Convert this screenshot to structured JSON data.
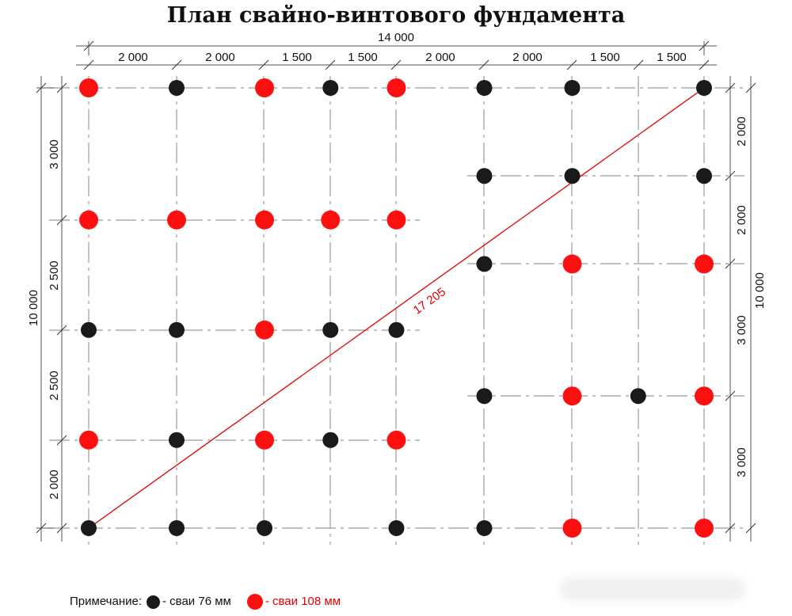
{
  "title": "План свайно-винтового фундамента",
  "dimensions": {
    "total_width": "14 000",
    "top_segments": [
      "2 000",
      "2 000",
      "1 500",
      "1 500",
      "2 000",
      "2 000",
      "1 500",
      "1 500"
    ],
    "total_height_left": "10 000",
    "left_segments": [
      "3 000",
      "2 500",
      "2 500",
      "2 000"
    ],
    "total_height_right": "10 000",
    "right_segments": [
      "2 000",
      "2 000",
      "3 000",
      "3 000"
    ],
    "diagonal": "17 205"
  },
  "colors": {
    "pile_76": "#1a1a1a",
    "pile_108": "#ff1010",
    "diagonal": "#e10000"
  },
  "piles": [
    {
      "x": 0,
      "y": 0,
      "type": "108"
    },
    {
      "x": 2000,
      "y": 0,
      "type": "76"
    },
    {
      "x": 4000,
      "y": 0,
      "type": "108"
    },
    {
      "x": 5500,
      "y": 0,
      "type": "76"
    },
    {
      "x": 7000,
      "y": 0,
      "type": "108"
    },
    {
      "x": 9000,
      "y": 0,
      "type": "76"
    },
    {
      "x": 11000,
      "y": 0,
      "type": "76"
    },
    {
      "x": 14000,
      "y": 0,
      "type": "76"
    },
    {
      "x": 9000,
      "y": 2000,
      "type": "76"
    },
    {
      "x": 11000,
      "y": 2000,
      "type": "76"
    },
    {
      "x": 14000,
      "y": 2000,
      "type": "76"
    },
    {
      "x": 0,
      "y": 3000,
      "type": "108"
    },
    {
      "x": 2000,
      "y": 3000,
      "type": "108"
    },
    {
      "x": 4000,
      "y": 3000,
      "type": "108"
    },
    {
      "x": 5500,
      "y": 3000,
      "type": "108"
    },
    {
      "x": 7000,
      "y": 3000,
      "type": "108"
    },
    {
      "x": 9000,
      "y": 4000,
      "type": "76"
    },
    {
      "x": 11000,
      "y": 4000,
      "type": "108"
    },
    {
      "x": 14000,
      "y": 4000,
      "type": "108"
    },
    {
      "x": 0,
      "y": 5500,
      "type": "76"
    },
    {
      "x": 2000,
      "y": 5500,
      "type": "76"
    },
    {
      "x": 4000,
      "y": 5500,
      "type": "108"
    },
    {
      "x": 5500,
      "y": 5500,
      "type": "76"
    },
    {
      "x": 7000,
      "y": 5500,
      "type": "76"
    },
    {
      "x": 9000,
      "y": 7000,
      "type": "76"
    },
    {
      "x": 11000,
      "y": 7000,
      "type": "108"
    },
    {
      "x": 12500,
      "y": 7000,
      "type": "76"
    },
    {
      "x": 14000,
      "y": 7000,
      "type": "108"
    },
    {
      "x": 0,
      "y": 8000,
      "type": "108"
    },
    {
      "x": 2000,
      "y": 8000,
      "type": "76"
    },
    {
      "x": 4000,
      "y": 8000,
      "type": "108"
    },
    {
      "x": 5500,
      "y": 8000,
      "type": "76"
    },
    {
      "x": 7000,
      "y": 8000,
      "type": "108"
    },
    {
      "x": 0,
      "y": 10000,
      "type": "76"
    },
    {
      "x": 2000,
      "y": 10000,
      "type": "76"
    },
    {
      "x": 4000,
      "y": 10000,
      "type": "76"
    },
    {
      "x": 7000,
      "y": 10000,
      "type": "76"
    },
    {
      "x": 9000,
      "y": 10000,
      "type": "76"
    },
    {
      "x": 11000,
      "y": 10000,
      "type": "108"
    },
    {
      "x": 14000,
      "y": 10000,
      "type": "108"
    }
  ],
  "legend": {
    "prefix": "Примечание:",
    "black_label": "- сваи 76 мм",
    "red_label": "- сваи 108 мм"
  }
}
